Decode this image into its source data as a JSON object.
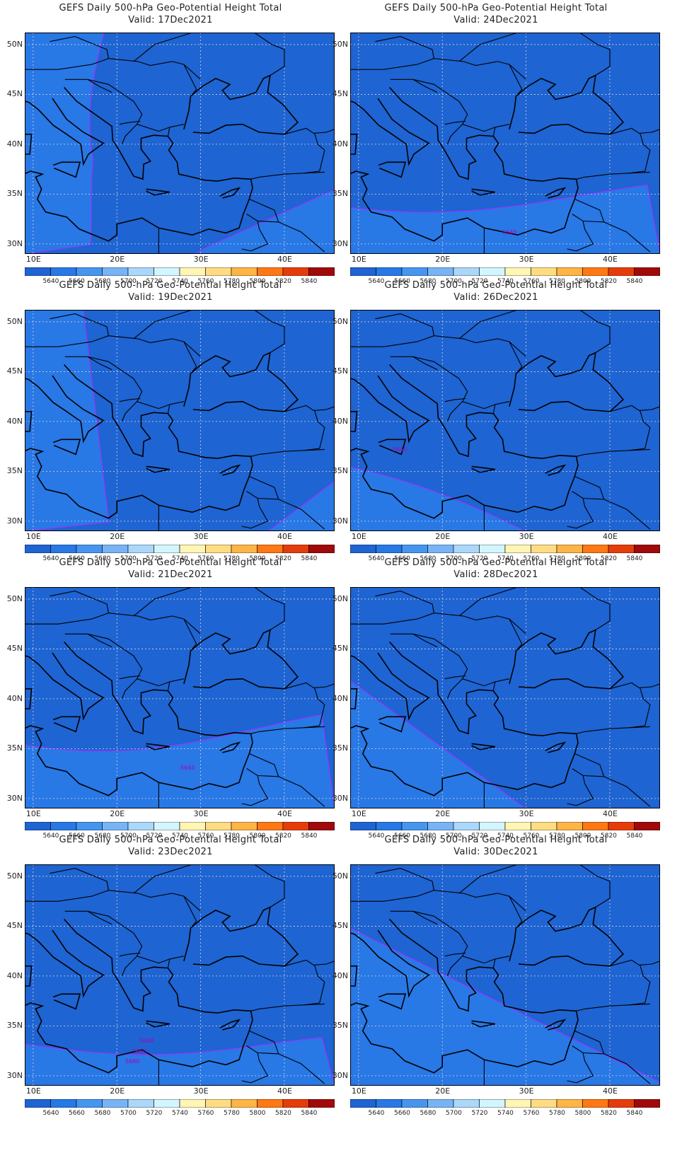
{
  "panels": [
    {
      "title": "GEFS Daily 500-hPa Geo-Potential Height Total",
      "valid": "Valid: 17Dec2021",
      "contour_label": ""
    },
    {
      "title": "GEFS Daily 500-hPa Geo-Potential Height Total",
      "valid": "Valid: 24Dec2021",
      "contour_label": "5640"
    },
    {
      "title": "GEFS Daily 500-hPa Geo-Potential Height Total",
      "valid": "Valid: 19Dec2021",
      "contour_label": ""
    },
    {
      "title": "GEFS Daily 500-hPa Geo-Potential Height Total",
      "valid": "Valid: 26Dec2021",
      "contour_label": "5640"
    },
    {
      "title": "GEFS Daily 500-hPa Geo-Potential Height Total",
      "valid": "Valid: 21Dec2021",
      "contour_label": "5640"
    },
    {
      "title": "GEFS Daily 500-hPa Geo-Potential Height Total",
      "valid": "Valid: 28Dec2021",
      "contour_label": ""
    },
    {
      "title": "GEFS Daily 500-hPa Geo-Potential Height Total",
      "valid": "Valid: 23Dec2021",
      "contour_labels": [
        "5640",
        "5660",
        "5680"
      ]
    },
    {
      "title": "GEFS Daily 500-hPa Geo-Potential Height Total",
      "valid": "Valid: 30Dec2021",
      "contour_label": ""
    }
  ],
  "axes": {
    "lat_labels": [
      "50N",
      "45N",
      "40N",
      "35N",
      "30N"
    ],
    "lon_labels": [
      "10E",
      "20E",
      "30E",
      "40E"
    ]
  },
  "colorbar": {
    "labels": [
      "5640",
      "5660",
      "5680",
      "5700",
      "5720",
      "5740",
      "5760",
      "5780",
      "5800",
      "5820",
      "5840"
    ],
    "colors": [
      "#1e64d2",
      "#2878e6",
      "#4696f0",
      "#78b4f5",
      "#aad7fa",
      "#d2f5ff",
      "#fff5b4",
      "#ffdc82",
      "#ffb446",
      "#ff7814",
      "#e63c0a",
      "#a00a0a"
    ]
  }
}
